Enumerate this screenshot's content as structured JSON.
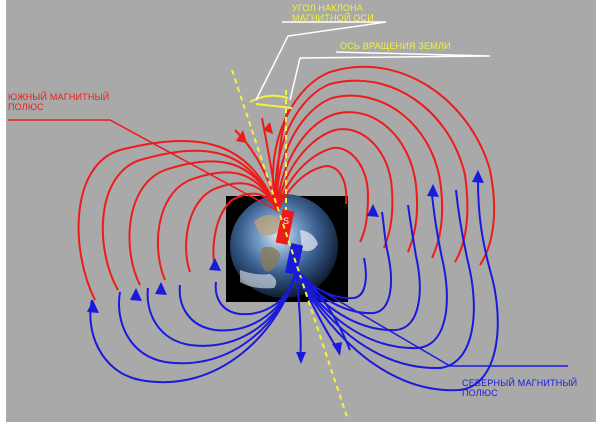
{
  "labels": {
    "tilt_angle_line1": "УГОЛ НАКЛОНА",
    "tilt_angle_line2": "МАГНИТНОЙ ОСИ",
    "rotation_axis": "ОСЬ ВРАЩЕНИЯ ЗЕМЛИ",
    "south_pole_line1": "ЮЖНЫЙ МАГНИТНЫЙ",
    "south_pole_line2": "ПОЛЮС",
    "north_pole_line1": "СЕВЕРНЫЙ МАГНИТНЫЙ",
    "north_pole_line2": "ПОЛЮС",
    "pole_marker_s": "S"
  },
  "colors": {
    "background": "#a9a9a9",
    "field_lines_south": "#ee1b1b",
    "field_lines_north": "#1a1adc",
    "axis_line": "#f2f23a",
    "leader_line_white": "#ffffff"
  }
}
